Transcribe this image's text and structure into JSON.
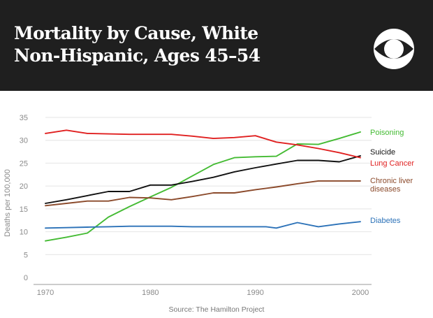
{
  "header": {
    "title_line1": "Mortality by Cause, White",
    "title_line2": "Non-Hispanic, Ages 45–54",
    "logo": "cbs-eye-logo"
  },
  "chart_data": {
    "type": "line",
    "title": "Mortality by Cause, White Non-Hispanic, Ages 45–54",
    "xlabel": "",
    "ylabel": "Deaths per 100,000",
    "xlim": [
      1970,
      2000
    ],
    "ylim": [
      0,
      35
    ],
    "x_ticks": [
      1970,
      1980,
      1990,
      2000
    ],
    "y_ticks": [
      0,
      5,
      10,
      15,
      20,
      25,
      30,
      35
    ],
    "grid": true,
    "source": "Source: The Hamilton Project",
    "series": [
      {
        "name": "Poisoning",
        "label_lines": [
          "Poisoning"
        ],
        "color": "#44bb33",
        "x": [
          1970,
          1972,
          1974,
          1976,
          1978,
          1980,
          1982,
          1984,
          1986,
          1988,
          1990,
          1992,
          1994,
          1996,
          1998,
          2000
        ],
        "values": [
          8.0,
          8.8,
          9.7,
          13.2,
          15.5,
          17.6,
          19.7,
          22.2,
          24.7,
          26.2,
          26.4,
          26.5,
          29.2,
          29.1,
          30.4,
          31.8
        ]
      },
      {
        "name": "Suicide",
        "label_lines": [
          "Suicide"
        ],
        "color": "#111111",
        "x": [
          1970,
          1972,
          1974,
          1976,
          1978,
          1980,
          1982,
          1984,
          1986,
          1988,
          1990,
          1992,
          1994,
          1996,
          1998,
          2000
        ],
        "values": [
          16.2,
          17.0,
          17.9,
          18.8,
          18.8,
          20.2,
          20.2,
          21.0,
          21.9,
          23.1,
          24.0,
          24.8,
          25.6,
          25.6,
          25.3,
          26.6
        ]
      },
      {
        "name": "Lung Cancer",
        "label_lines": [
          "Lung Cancer"
        ],
        "color": "#e02020",
        "x": [
          1970,
          1972,
          1974,
          1976,
          1978,
          1980,
          1982,
          1984,
          1986,
          1988,
          1990,
          1992,
          1994,
          1996,
          1998,
          2000
        ],
        "values": [
          31.5,
          32.2,
          31.5,
          31.4,
          31.3,
          31.3,
          31.3,
          30.9,
          30.4,
          30.6,
          31.0,
          29.6,
          29.0,
          28.2,
          27.3,
          26.2
        ]
      },
      {
        "name": "Chronic liver diseases",
        "label_lines": [
          "Chronic liver",
          "diseases"
        ],
        "color": "#8b4a2b",
        "x": [
          1970,
          1972,
          1974,
          1976,
          1978,
          1980,
          1982,
          1984,
          1986,
          1988,
          1990,
          1992,
          1994,
          1996,
          1998,
          2000
        ],
        "values": [
          15.7,
          16.2,
          16.7,
          16.7,
          17.5,
          17.4,
          17.0,
          17.7,
          18.5,
          18.5,
          19.2,
          19.8,
          20.5,
          21.1,
          21.1,
          21.1
        ]
      },
      {
        "name": "Diabetes",
        "label_lines": [
          "Diabetes"
        ],
        "color": "#2c72b8",
        "x": [
          1970,
          1972,
          1974,
          1976,
          1978,
          1980,
          1982,
          1984,
          1986,
          1988,
          1990,
          1991,
          1992,
          1994,
          1996,
          1998,
          2000
        ],
        "values": [
          10.8,
          10.9,
          11.0,
          11.1,
          11.2,
          11.2,
          11.2,
          11.1,
          11.1,
          11.1,
          11.1,
          11.1,
          10.8,
          12.0,
          11.1,
          11.7,
          12.2
        ]
      }
    ]
  }
}
